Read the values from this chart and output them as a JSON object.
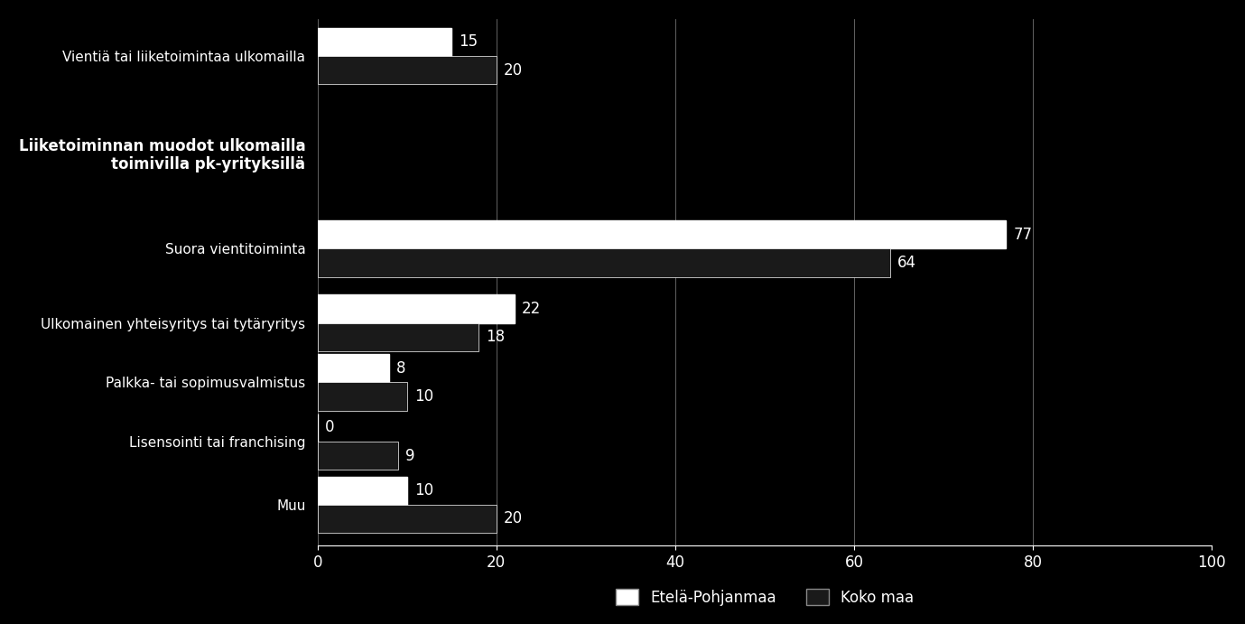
{
  "categories": [
    "Vientiä tai liiketoimintaa ulkomailla",
    "Liiketoiminnan muodot ulkomailla\ntoimivilla pk-yrityksillä",
    "Suora vientitoiminta",
    "Ulkomainen yhteisyritys tai tytäryritys",
    "Palkka- tai sopimusvalmistus",
    "Lisensointi tai franchising",
    "Muu"
  ],
  "etelä_pohjanmaa": [
    15,
    null,
    77,
    22,
    8,
    0,
    10
  ],
  "koko_maa": [
    20,
    null,
    64,
    18,
    10,
    9,
    20
  ],
  "bar_color_ep": "#ffffff",
  "bar_color_km": "#1a1a1a",
  "background_color": "#000000",
  "text_color": "#ffffff",
  "xlim": [
    0,
    100
  ],
  "xticks": [
    0,
    20,
    40,
    60,
    80,
    100
  ],
  "bar_height": 0.38,
  "legend_ep": "Etelä-Pohjanmaa",
  "legend_km": "Koko maa",
  "label_fontsize": 11,
  "tick_fontsize": 12,
  "annotation_fontsize": 12,
  "bold_category_index": 1,
  "y_positions": [
    6.5,
    5.2,
    3.9,
    2.9,
    2.1,
    1.3,
    0.45
  ]
}
